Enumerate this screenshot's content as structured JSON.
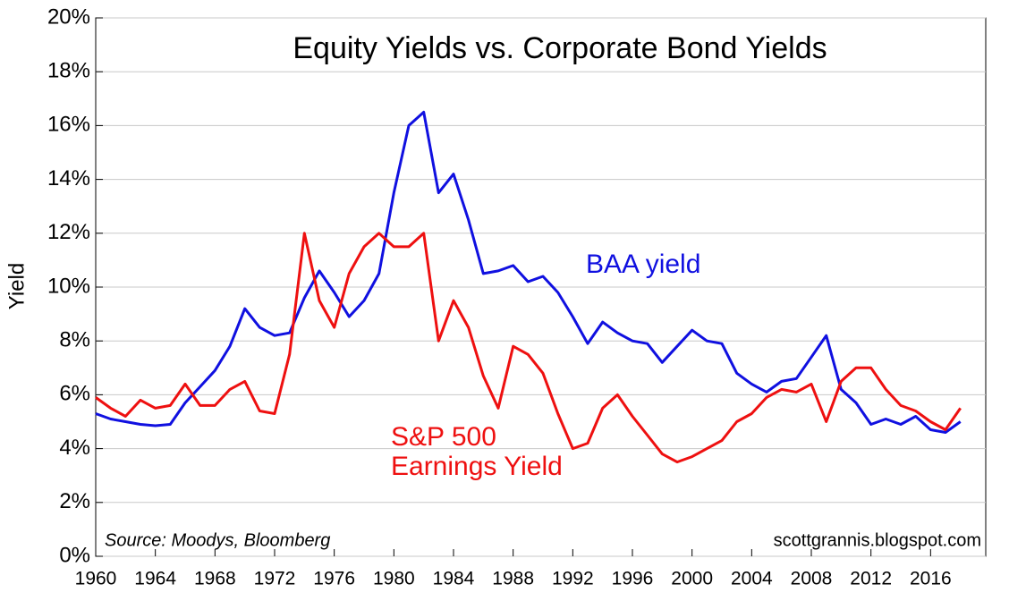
{
  "chart_data": {
    "type": "line",
    "title": "Equity Yields vs. Corporate Bond Yields",
    "y_label": "Yield",
    "source": "Source: Moodys, Bloomberg",
    "watermark": "scottgrannis.blogspot.com",
    "annotations": [
      {
        "text": "BAA yield",
        "color": "#1010e0"
      },
      {
        "text": "S&P 500",
        "color": "#ee1010"
      },
      {
        "text": "Earnings Yield",
        "color": "#ee1010"
      }
    ],
    "x": [
      1960,
      1961,
      1962,
      1963,
      1964,
      1965,
      1966,
      1967,
      1968,
      1969,
      1970,
      1971,
      1972,
      1973,
      1974,
      1975,
      1976,
      1977,
      1978,
      1979,
      1980,
      1981,
      1982,
      1983,
      1984,
      1985,
      1986,
      1987,
      1988,
      1989,
      1990,
      1991,
      1992,
      1993,
      1994,
      1995,
      1996,
      1997,
      1998,
      1999,
      2000,
      2001,
      2002,
      2003,
      2004,
      2005,
      2006,
      2007,
      2008,
      2009,
      2010,
      2011,
      2012,
      2013,
      2014,
      2015,
      2016,
      2017,
      2018
    ],
    "series": [
      {
        "color": "#1010e0",
        "values": [
          5.3,
          5.1,
          5.0,
          4.9,
          4.85,
          4.9,
          5.7,
          6.3,
          6.9,
          7.8,
          9.2,
          8.5,
          8.2,
          8.3,
          9.6,
          10.6,
          9.8,
          8.9,
          9.5,
          10.5,
          13.5,
          16.0,
          16.5,
          13.5,
          14.2,
          12.5,
          10.5,
          10.6,
          10.8,
          10.2,
          10.4,
          9.8,
          8.9,
          7.9,
          8.7,
          8.3,
          8.0,
          7.9,
          7.2,
          7.8,
          8.4,
          8.0,
          7.9,
          6.8,
          6.4,
          6.1,
          6.5,
          6.6,
          7.4,
          8.2,
          6.2,
          5.7,
          4.9,
          5.1,
          4.9,
          5.2,
          4.7,
          4.6,
          5.0
        ]
      },
      {
        "color": "#ee1010",
        "values": [
          5.9,
          5.5,
          5.2,
          5.8,
          5.5,
          5.6,
          6.4,
          5.6,
          5.6,
          6.2,
          6.5,
          5.4,
          5.3,
          7.5,
          12.0,
          9.5,
          8.5,
          10.5,
          11.5,
          12.0,
          11.5,
          11.5,
          12.0,
          8.0,
          9.5,
          8.5,
          6.7,
          5.5,
          7.8,
          7.5,
          6.8,
          5.3,
          4.0,
          4.2,
          5.5,
          6.0,
          5.2,
          4.5,
          3.8,
          3.5,
          3.7,
          4.0,
          4.3,
          5.0,
          5.3,
          5.9,
          6.2,
          6.1,
          6.4,
          5.0,
          6.5,
          7.0,
          7.0,
          6.2,
          5.6,
          5.4,
          5.0,
          4.7,
          5.5
        ]
      }
    ],
    "xlim": [
      1960,
      2019.7
    ],
    "xticks": [
      1960,
      1964,
      1968,
      1972,
      1976,
      1980,
      1984,
      1988,
      1992,
      1996,
      2000,
      2004,
      2008,
      2012,
      2016
    ],
    "ylim": [
      0,
      20
    ],
    "yticks": [
      {
        "value": 0,
        "label": "0%"
      },
      {
        "value": 2,
        "label": "2%"
      },
      {
        "value": 4,
        "label": "4%"
      },
      {
        "value": 6,
        "label": "6%"
      },
      {
        "value": 8,
        "label": "8%"
      },
      {
        "value": 10,
        "label": "10%"
      },
      {
        "value": 12,
        "label": "12%"
      },
      {
        "value": 14,
        "label": "14%"
      },
      {
        "value": 16,
        "label": "16%"
      },
      {
        "value": 18,
        "label": "18%"
      },
      {
        "value": 20,
        "label": "20%"
      }
    ],
    "grid": true
  }
}
